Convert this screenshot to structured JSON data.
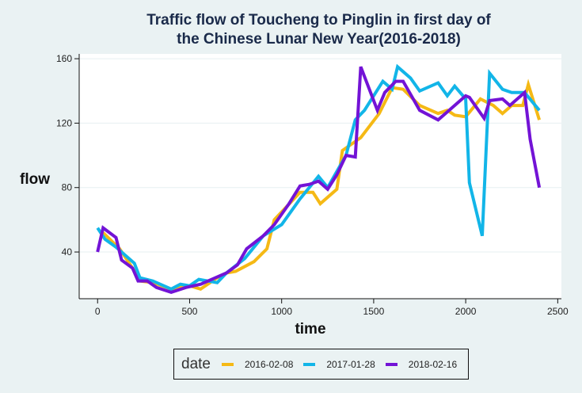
{
  "chart_data": {
    "type": "line",
    "title": "Traffic flow of Toucheng to Pinglin  in first day of the Chinese Lunar New Year(2016-2018)",
    "title_lines": [
      "Traffic flow of Toucheng to Pinglin  in first day of",
      "the Chinese Lunar New Year(2016-2018)"
    ],
    "xlabel": "time",
    "ylabel": "flow",
    "xlim": [
      -100,
      2520
    ],
    "ylim": [
      11,
      163
    ],
    "xticks": [
      0,
      500,
      1000,
      1500,
      2000,
      2500
    ],
    "yticks": [
      40,
      80,
      120,
      160
    ],
    "grid": "horizontal",
    "legend": {
      "title": "date",
      "position": "bottom"
    },
    "series": [
      {
        "name": "2016-02-08",
        "color": "#f5b915",
        "x": [
          30,
          120,
          190,
          230,
          300,
          400,
          500,
          560,
          650,
          700,
          750,
          850,
          920,
          960,
          1100,
          1170,
          1210,
          1300,
          1330,
          1430,
          1530,
          1600,
          1660,
          1750,
          1850,
          1900,
          1940,
          2000,
          2080,
          2150,
          2200,
          2250,
          2310,
          2340,
          2400
        ],
        "y": [
          52,
          42,
          30,
          22,
          21,
          17,
          19,
          17,
          24,
          27,
          28,
          34,
          42,
          60,
          77,
          77,
          70,
          79,
          103,
          111,
          126,
          142,
          141,
          131,
          126,
          128,
          125,
          124,
          135,
          131,
          126,
          131,
          131,
          144,
          122
        ]
      },
      {
        "name": "2017-01-28",
        "color": "#12b5e8",
        "x": [
          0,
          40,
          100,
          200,
          230,
          300,
          400,
          450,
          500,
          550,
          650,
          700,
          800,
          900,
          1000,
          1100,
          1200,
          1250,
          1300,
          1350,
          1400,
          1450,
          1550,
          1600,
          1630,
          1700,
          1750,
          1850,
          1900,
          1940,
          2000,
          2020,
          2090,
          2130,
          2200,
          2250,
          2320,
          2400
        ],
        "y": [
          55,
          48,
          43,
          33,
          24,
          22,
          17,
          20,
          19,
          23,
          21,
          27,
          36,
          50,
          57,
          73,
          87,
          80,
          90,
          100,
          122,
          128,
          146,
          141,
          155,
          148,
          140,
          145,
          137,
          143,
          135,
          83,
          50,
          151,
          141,
          139,
          139,
          128
        ]
      },
      {
        "name": "2018-02-16",
        "color": "#7313d6",
        "x": [
          0,
          30,
          100,
          130,
          190,
          220,
          270,
          320,
          400,
          480,
          560,
          640,
          700,
          760,
          810,
          900,
          960,
          1040,
          1100,
          1150,
          1200,
          1250,
          1300,
          1350,
          1400,
          1430,
          1520,
          1560,
          1620,
          1660,
          1750,
          1850,
          1900,
          2000,
          2020,
          2100,
          2130,
          2200,
          2240,
          2320,
          2350,
          2400
        ],
        "y": [
          40,
          55,
          49,
          35,
          30,
          22,
          22,
          18,
          15,
          18,
          20,
          24,
          27,
          32,
          42,
          50,
          57,
          70,
          81,
          82,
          84,
          79,
          88,
          100,
          99,
          155,
          128,
          139,
          146,
          146,
          128,
          122,
          127,
          137,
          136,
          123,
          134,
          135,
          131,
          139,
          110,
          80
        ]
      }
    ]
  }
}
